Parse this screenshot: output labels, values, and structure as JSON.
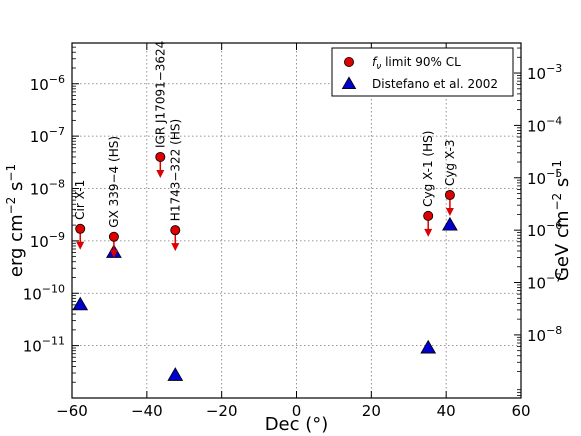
{
  "chart_data": {
    "type": "scatter",
    "xlabel": "Dec (°)",
    "ylabel_left_parts": [
      "erg cm",
      "−2",
      " s",
      "−1"
    ],
    "ylabel_right_parts": [
      "GeV cm",
      "−2",
      " s",
      "−1"
    ],
    "xlim": [
      -60,
      60
    ],
    "ylim_left": [
      1e-12,
      6e-06
    ],
    "y_scale": "log",
    "grid": true,
    "legend_position": "top-right",
    "x_ticks": [
      {
        "value": -60,
        "label": "−60"
      },
      {
        "value": -40,
        "label": "−40"
      },
      {
        "value": -20,
        "label": "−20"
      },
      {
        "value": 0,
        "label": "0"
      },
      {
        "value": 20,
        "label": "20"
      },
      {
        "value": 40,
        "label": "40"
      },
      {
        "value": 60,
        "label": "60"
      }
    ],
    "y_ticks_left": [
      {
        "value": 1e-11,
        "base": "10",
        "exp": "−11"
      },
      {
        "value": 1e-10,
        "base": "10",
        "exp": "−10"
      },
      {
        "value": 1e-09,
        "base": "10",
        "exp": "−9"
      },
      {
        "value": 1e-08,
        "base": "10",
        "exp": "−8"
      },
      {
        "value": 1e-07,
        "base": "10",
        "exp": "−7"
      },
      {
        "value": 1e-06,
        "base": "10",
        "exp": "−6"
      }
    ],
    "y_ticks_right": [
      {
        "value_gev": 1e-08,
        "base": "10",
        "exp": "−8"
      },
      {
        "value_gev": 1e-07,
        "base": "10",
        "exp": "−7"
      },
      {
        "value_gev": 1e-06,
        "base": "10",
        "exp": "−6"
      },
      {
        "value_gev": 1e-05,
        "base": "10",
        "exp": "−5"
      },
      {
        "value_gev": 0.0001,
        "base": "10",
        "exp": "−4"
      },
      {
        "value_gev": 0.001,
        "base": "10",
        "exp": "−3"
      }
    ],
    "gev_per_erg": 624.15,
    "series": [
      {
        "name_parts": [
          "f",
          "ν",
          " limit 90% CL"
        ],
        "marker": "circle",
        "color": "#dd0000",
        "upper_limit_arrows": true,
        "points": [
          {
            "x": -57.8,
            "y": 1.7e-09,
            "label": "Cir X-1"
          },
          {
            "x": -48.8,
            "y": 1.2e-09,
            "label": "GX 339−4 (HS)"
          },
          {
            "x": -36.4,
            "y": 4e-08,
            "label": "IGR J17091−3624"
          },
          {
            "x": -32.4,
            "y": 1.6e-09,
            "label": "H1743−322 (HS)"
          },
          {
            "x": 35.2,
            "y": 3e-09,
            "label": "Cyg X-1 (HS)"
          },
          {
            "x": 41.0,
            "y": 7.5e-09,
            "label": "Cyg X-3"
          }
        ]
      },
      {
        "name": "Distefano et al. 2002",
        "marker": "triangle",
        "color": "#0000cc",
        "points": [
          {
            "x": -57.8,
            "y": 6e-11
          },
          {
            "x": -48.8,
            "y": 6e-10
          },
          {
            "x": -32.4,
            "y": 2.7e-12
          },
          {
            "x": 35.2,
            "y": 9e-12
          },
          {
            "x": 41.0,
            "y": 2e-09
          }
        ]
      }
    ]
  }
}
